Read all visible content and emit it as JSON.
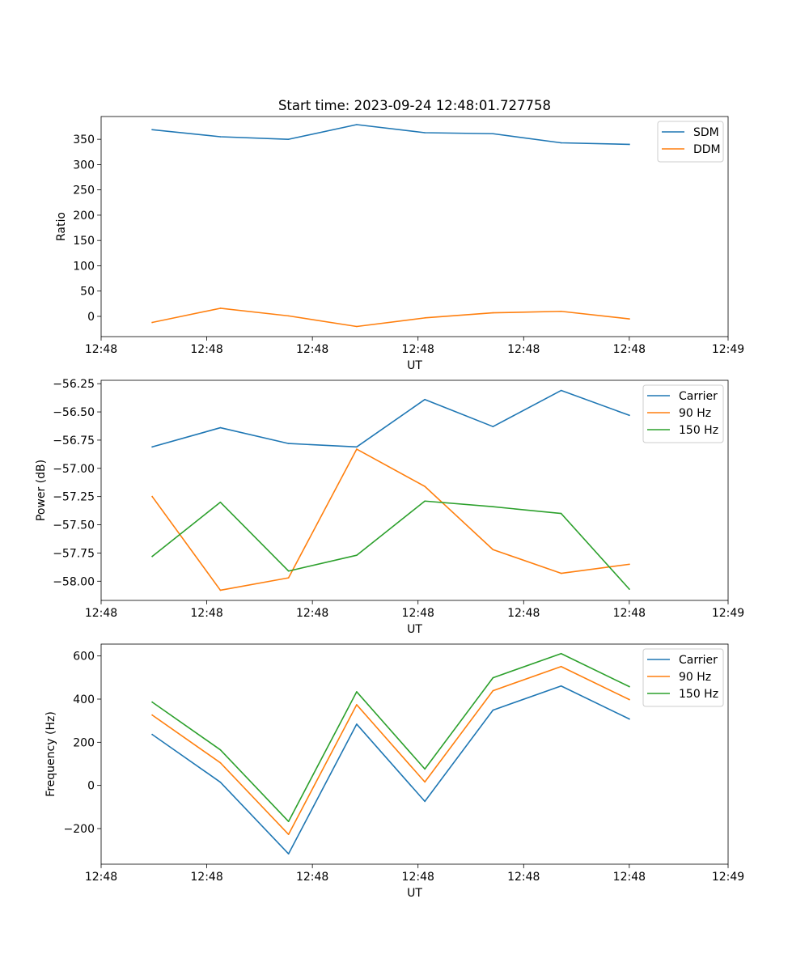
{
  "figure_title": "Start time: 2023-09-24 12:48:01.727758",
  "colors": {
    "blue": "#1f77b4",
    "orange": "#ff7f0e",
    "green": "#2ca02c"
  },
  "chart_data": [
    {
      "type": "line",
      "title": "Start time: 2023-09-24 12:48:01.727758",
      "xlabel": "UT",
      "ylabel": "Ratio",
      "x": [
        0,
        1,
        2,
        3,
        4,
        5,
        6,
        7
      ],
      "xlim": [
        -0.75,
        8.45
      ],
      "xticks": [
        -0.75,
        0.8,
        2.35,
        3.9,
        5.45,
        7.0,
        8.45
      ],
      "xtick_labels": [
        "12:48",
        "12:48",
        "12:48",
        "12:48",
        "12:48",
        "12:48",
        "12:49"
      ],
      "ylim": [
        -40,
        395
      ],
      "yticks": [
        0,
        50,
        100,
        150,
        200,
        250,
        300,
        350
      ],
      "ytick_labels": [
        "0",
        "50",
        "100",
        "150",
        "200",
        "250",
        "300",
        "350"
      ],
      "legend_position": "top-right",
      "series": [
        {
          "name": "SDM",
          "color": "#1f77b4",
          "values": [
            369,
            355,
            350,
            379,
            363,
            361,
            343,
            340
          ]
        },
        {
          "name": "DDM",
          "color": "#ff7f0e",
          "values": [
            -12,
            16,
            1,
            -20,
            -3,
            7,
            10,
            -5
          ]
        }
      ]
    },
    {
      "type": "line",
      "title": "",
      "xlabel": "UT",
      "ylabel": "Power (dB)",
      "x": [
        0,
        1,
        2,
        3,
        4,
        5,
        6,
        7
      ],
      "xlim": [
        -0.75,
        8.45
      ],
      "xticks": [
        -0.75,
        0.8,
        2.35,
        3.9,
        5.45,
        7.0,
        8.45
      ],
      "xtick_labels": [
        "12:48",
        "12:48",
        "12:48",
        "12:48",
        "12:48",
        "12:48",
        "12:49"
      ],
      "ylim": [
        -58.17,
        -56.22
      ],
      "yticks": [
        -58.0,
        -57.75,
        -57.5,
        -57.25,
        -57.0,
        -56.75,
        -56.5,
        -56.25
      ],
      "ytick_labels": [
        "−58.00",
        "−57.75",
        "−57.50",
        "−57.25",
        "−57.00",
        "−56.75",
        "−56.50",
        "−56.25"
      ],
      "legend_position": "top-right",
      "series": [
        {
          "name": "Carrier",
          "color": "#1f77b4",
          "values": [
            -56.81,
            -56.64,
            -56.78,
            -56.81,
            -56.39,
            -56.63,
            -56.31,
            -56.53
          ]
        },
        {
          "name": "90 Hz",
          "color": "#ff7f0e",
          "values": [
            -57.25,
            -58.08,
            -57.97,
            -56.83,
            -57.16,
            -57.72,
            -57.93,
            -57.85
          ]
        },
        {
          "name": "150 Hz",
          "color": "#2ca02c",
          "values": [
            -57.78,
            -57.3,
            -57.91,
            -57.77,
            -57.29,
            -57.34,
            -57.4,
            -58.07
          ]
        }
      ]
    },
    {
      "type": "line",
      "title": "",
      "xlabel": "UT",
      "ylabel": "Frequency (Hz)",
      "x": [
        0,
        1,
        2,
        3,
        4,
        5,
        6,
        7
      ],
      "xlim": [
        -0.75,
        8.45
      ],
      "xticks": [
        -0.75,
        0.8,
        2.35,
        3.9,
        5.45,
        7.0,
        8.45
      ],
      "xtick_labels": [
        "12:48",
        "12:48",
        "12:48",
        "12:48",
        "12:48",
        "12:48",
        "12:49"
      ],
      "ylim": [
        -365,
        655
      ],
      "yticks": [
        -200,
        0,
        200,
        400,
        600
      ],
      "ytick_labels": [
        "−200",
        "0",
        "200",
        "400",
        "600"
      ],
      "legend_position": "top-right",
      "series": [
        {
          "name": "Carrier",
          "color": "#1f77b4",
          "values": [
            236,
            15,
            -317,
            284,
            -74,
            349,
            461,
            308
          ]
        },
        {
          "name": "90 Hz",
          "color": "#ff7f0e",
          "values": [
            326,
            105,
            -227,
            374,
            16,
            439,
            551,
            398
          ]
        },
        {
          "name": "150 Hz",
          "color": "#2ca02c",
          "values": [
            386,
            165,
            -167,
            434,
            76,
            499,
            611,
            458
          ]
        }
      ]
    }
  ]
}
